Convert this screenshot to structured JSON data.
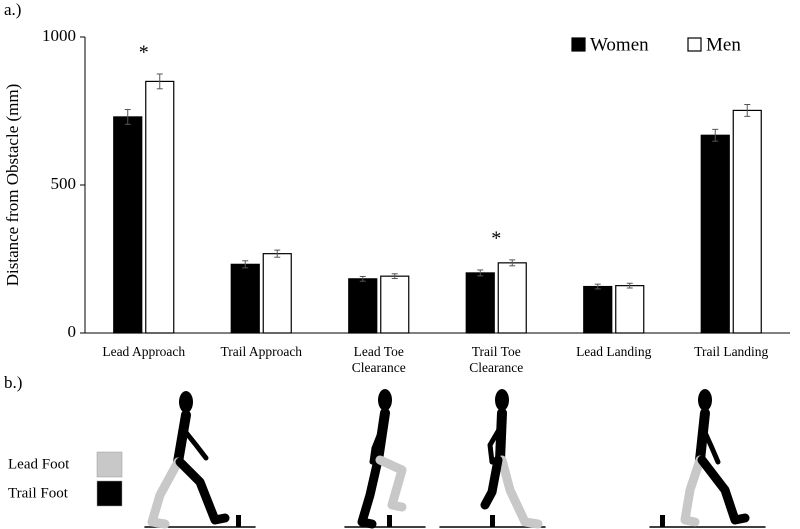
{
  "panel_labels": [
    "a.)",
    "b.)"
  ],
  "chart_data": {
    "type": "bar",
    "y_label": "Distance from Obstacle (mm)",
    "categories": [
      "Lead Approach",
      "Trail Approach",
      "Lead Toe Clearance",
      "Trail Toe Clearance",
      "Lead Landing",
      "Trail Landing"
    ],
    "significance": [
      "*",
      null,
      null,
      "*",
      null,
      null
    ],
    "series": [
      {
        "name": "Women",
        "color": "#000000",
        "values": [
          730,
          232,
          183,
          203,
          157,
          668
        ],
        "errors": [
          25,
          12,
          8,
          10,
          8,
          20
        ]
      },
      {
        "name": "Men",
        "color": "#ffffff",
        "values": [
          850,
          268,
          192,
          237,
          160,
          752
        ],
        "errors": [
          25,
          12,
          8,
          10,
          8,
          20
        ]
      }
    ],
    "ylim": [
      0,
      1000
    ],
    "yticks": [
      0,
      500,
      1000
    ],
    "grid": false,
    "legend": "top-right"
  },
  "diagram_legend": [
    {
      "label": "Lead Foot",
      "color": "#c8c8c8"
    },
    {
      "label": "Trail Foot",
      "color": "#000000"
    }
  ]
}
